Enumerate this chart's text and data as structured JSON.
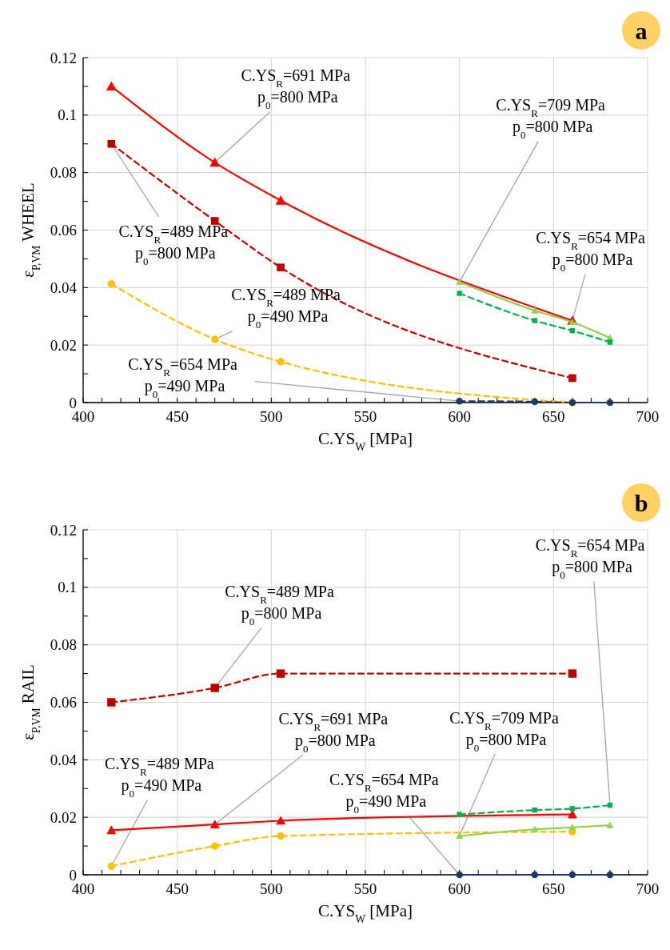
{
  "chart_data": [
    {
      "type": "line",
      "title": "a",
      "xlabel": "C.YS$_{W}$ [MPa]",
      "ylabel": "ε$_{P,VM}$ WHEEL",
      "xlim": [
        400,
        700
      ],
      "xticks": [
        400,
        {
          "value": 410,
          "label": null
        },
        {
          "value": 420,
          "label": null
        },
        {
          "value": 430,
          "label": null
        },
        {
          "value": 440,
          "label": null
        },
        450,
        {
          "value": 460,
          "label": null
        },
        {
          "value": 470,
          "label": null
        },
        {
          "value": 480,
          "label": null
        },
        {
          "value": 490,
          "label": null
        },
        500,
        {
          "value": 510,
          "label": null
        },
        {
          "value": 520,
          "label": null
        },
        {
          "value": 530,
          "label": null
        },
        {
          "value": 540,
          "label": null
        },
        550,
        {
          "value": 560,
          "label": null
        },
        {
          "value": 570,
          "label": null
        },
        {
          "value": 580,
          "label": null
        },
        {
          "value": 590,
          "label": null
        },
        600,
        {
          "value": 610,
          "label": null
        },
        {
          "value": 620,
          "label": null
        },
        {
          "value": 630,
          "label": null
        },
        {
          "value": 640,
          "label": null
        },
        650,
        {
          "value": 660,
          "label": null
        },
        {
          "value": 670,
          "label": null
        },
        {
          "value": 680,
          "label": null
        },
        {
          "value": 690,
          "label": null
        },
        700
      ],
      "ylim": [
        0,
        0.12
      ],
      "yticks": [
        0,
        {
          "value": 0.01,
          "label": null
        },
        0.02,
        {
          "value": 0.03,
          "label": null
        },
        0.04,
        {
          "value": 0.05,
          "label": null
        },
        0.06,
        {
          "value": 0.07,
          "label": null
        },
        0.08,
        {
          "value": 0.09,
          "label": null
        },
        0.1,
        {
          "value": 0.11,
          "label": null
        },
        0.12
      ],
      "grid": true,
      "series": [
        {
          "color": "#ff0000",
          "x": [
            415,
            470,
            505,
            660
          ],
          "values": [
            0.11,
            0.0835,
            0.0703,
            0.0285
          ],
          "line_style": "solid",
          "marker": "triangle"
        },
        {
          "color": "#c00000",
          "x": [
            415,
            470,
            505,
            660
          ],
          "values": [
            0.09,
            0.0632,
            0.047,
            0.0085
          ],
          "line_style": "dashed",
          "marker": "square"
        },
        {
          "color": "#ffc000",
          "x": [
            415,
            470,
            505,
            660
          ],
          "values": [
            0.0413,
            0.022,
            0.0142,
            0
          ],
          "line_style": "dashed",
          "marker": "circle"
        },
        {
          "color": "#1f3864",
          "x": [
            600,
            640,
            660,
            680
          ],
          "values": [
            0.0005,
            0.0003,
            0,
            0
          ],
          "line_style": "dashed",
          "marker": "circle"
        },
        {
          "color": "#92d050",
          "x": [
            600,
            640,
            660,
            680
          ],
          "values": [
            0.042,
            0.032,
            0.028,
            0.0225
          ],
          "line_style": "solid",
          "marker": "triangle"
        },
        {
          "color": "#00b050",
          "x": [
            600,
            640,
            660,
            680
          ],
          "values": [
            0.038,
            0.0285,
            0.025,
            0.021
          ],
          "line_style": "dashed",
          "marker": "square"
        }
      ],
      "annotations": [
        {
          "text": "C.YS$_{R}$=691 MPa p$_{0}$=800 MPa",
          "x": 470,
          "y": 0.0835
        },
        {
          "text": "C.YS$_{R}$=709 MPa p$_{0}$=800 MPa",
          "x": 600,
          "y": 0.042
        },
        {
          "text": "C.YS$_{R}$=489 MPa p$_{0}$=800 MPa",
          "x": 415,
          "y": 0.09
        },
        {
          "text": "C.YS$_{R}$=654 MPa p$_{0}$=800 MPa",
          "x": 660,
          "y": 0.0285
        },
        {
          "text": "C.YS$_{R}$=489 MPa p$_{0}$=490 MPa",
          "x": 470,
          "y": 0.022
        },
        {
          "text": "C.YS$_{R}$=654 MPa p$_{0}$=490 MPa",
          "x": 600,
          "y": 0.0005
        }
      ]
    },
    {
      "type": "line",
      "title": "b",
      "xlabel": "C.YS$_{W}$ [MPa]",
      "ylabel": "ε$_{P,VM}$ RAIL",
      "xlim": [
        400,
        700
      ],
      "xticks": [
        400,
        {
          "value": 410,
          "label": null
        },
        {
          "value": 420,
          "label": null
        },
        {
          "value": 430,
          "label": null
        },
        {
          "value": 440,
          "label": null
        },
        450,
        {
          "value": 460,
          "label": null
        },
        {
          "value": 470,
          "label": null
        },
        {
          "value": 480,
          "label": null
        },
        {
          "value": 490,
          "label": null
        },
        500,
        {
          "value": 510,
          "label": null
        },
        {
          "value": 520,
          "label": null
        },
        {
          "value": 530,
          "label": null
        },
        {
          "value": 540,
          "label": null
        },
        550,
        {
          "value": 560,
          "label": null
        },
        {
          "value": 570,
          "label": null
        },
        {
          "value": 580,
          "label": null
        },
        {
          "value": 590,
          "label": null
        },
        600,
        {
          "value": 610,
          "label": null
        },
        {
          "value": 620,
          "label": null
        },
        {
          "value": 630,
          "label": null
        },
        {
          "value": 640,
          "label": null
        },
        650,
        {
          "value": 660,
          "label": null
        },
        {
          "value": 670,
          "label": null
        },
        {
          "value": 680,
          "label": null
        },
        {
          "value": 690,
          "label": null
        },
        700
      ],
      "ylim": [
        0,
        0.12
      ],
      "yticks": [
        0,
        {
          "value": 0.01,
          "label": null
        },
        0.02,
        {
          "value": 0.03,
          "label": null
        },
        0.04,
        {
          "value": 0.05,
          "label": null
        },
        0.06,
        {
          "value": 0.07,
          "label": null
        },
        0.08,
        {
          "value": 0.09,
          "label": null
        },
        0.1,
        {
          "value": 0.11,
          "label": null
        },
        0.12
      ],
      "grid": true,
      "series": [
        {
          "color": "#c00000",
          "x": [
            415,
            470,
            505,
            660
          ],
          "values": [
            0.06,
            0.065,
            0.07,
            0.07
          ],
          "line_style": "dashed",
          "marker": "square"
        },
        {
          "color": "#ff0000",
          "x": [
            415,
            470,
            505,
            660
          ],
          "values": [
            0.0155,
            0.0175,
            0.0188,
            0.021
          ],
          "line_style": "solid",
          "marker": "triangle"
        },
        {
          "color": "#ffc000",
          "x": [
            415,
            470,
            505,
            660
          ],
          "values": [
            0.003,
            0.01,
            0.0135,
            0.015
          ],
          "line_style": "dashed",
          "marker": "circle"
        },
        {
          "color": "#1f3864",
          "x": [
            600,
            640,
            660,
            680
          ],
          "values": [
            0,
            0,
            0,
            0
          ],
          "line_style": "dashed",
          "marker": "circle"
        },
        {
          "color": "#92d050",
          "x": [
            600,
            640,
            660,
            680
          ],
          "values": [
            0.0135,
            0.0158,
            0.0165,
            0.0172
          ],
          "line_style": "solid",
          "marker": "triangle"
        },
        {
          "color": "#00b050",
          "x": [
            600,
            640,
            660,
            680
          ],
          "values": [
            0.021,
            0.0225,
            0.023,
            0.0242
          ],
          "line_style": "dashed",
          "marker": "square"
        }
      ],
      "annotations": [
        {
          "text": "C.YS$_{R}$=489 MPa p$_{0}$=800 MPa",
          "x": 470,
          "y": 0.065
        },
        {
          "text": "C.YS$_{R}$=654 MPa p$_{0}$=800 MPa",
          "x": 680,
          "y": 0.0242
        },
        {
          "text": "C.YS$_{R}$=691 MPa p$_{0}$=800 MPa",
          "x": 470,
          "y": 0.0175
        },
        {
          "text": "C.YS$_{R}$=709 MPa p$_{0}$=800 MPa",
          "x": 600,
          "y": 0.0135
        },
        {
          "text": "C.YS$_{R}$=489 MPa p$_{0}$=490 MPa",
          "x": 415,
          "y": 0.003
        },
        {
          "text": "C.YS$_{R}$=654 MPa p$_{0}$=490 MPa",
          "x": 600,
          "y": 0
        }
      ]
    }
  ]
}
